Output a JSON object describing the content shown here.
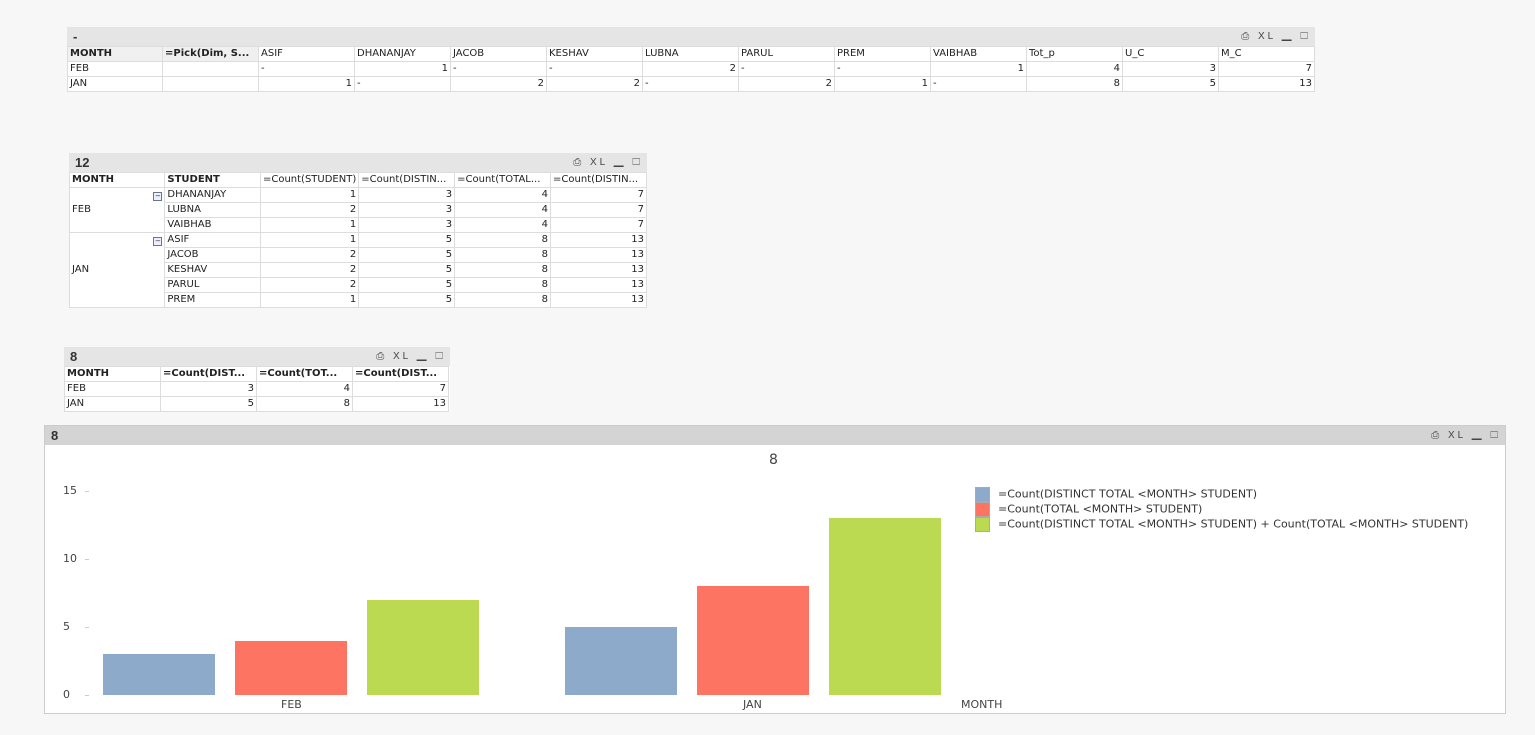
{
  "table1": {
    "title": "-",
    "headers": [
      "MONTH",
      "=Pick(Dim, S...",
      "ASIF",
      "DHANANJAY",
      "JACOB",
      "KESHAV",
      "LUBNA",
      "PARUL",
      "PREM",
      "VAIBHAB",
      "Tot_p",
      "U_C",
      "M_C"
    ],
    "rows": [
      [
        "FEB",
        "",
        "-",
        "1",
        "-",
        "-",
        "2",
        "-",
        "-",
        "1",
        "4",
        "3",
        "7"
      ],
      [
        "JAN",
        "",
        "1",
        "-",
        "2",
        "2",
        "-",
        "2",
        "1",
        "-",
        "8",
        "5",
        "13"
      ]
    ]
  },
  "table2": {
    "title": "12",
    "headers": [
      "MONTH",
      "STUDENT",
      "=Count(STUDENT)",
      "=Count(DISTIN...",
      "=Count(TOTAL...",
      "=Count(DISTIN..."
    ],
    "groups": [
      {
        "month": "FEB",
        "rows": [
          [
            "DHANANJAY",
            "1",
            "3",
            "4",
            "7"
          ],
          [
            "LUBNA",
            "2",
            "3",
            "4",
            "7"
          ],
          [
            "VAIBHAB",
            "1",
            "3",
            "4",
            "7"
          ]
        ]
      },
      {
        "month": "JAN",
        "rows": [
          [
            "ASIF",
            "1",
            "5",
            "8",
            "13"
          ],
          [
            "JACOB",
            "2",
            "5",
            "8",
            "13"
          ],
          [
            "KESHAV",
            "2",
            "5",
            "8",
            "13"
          ],
          [
            "PARUL",
            "2",
            "5",
            "8",
            "13"
          ],
          [
            "PREM",
            "1",
            "5",
            "8",
            "13"
          ]
        ]
      }
    ]
  },
  "table3": {
    "title": "8",
    "headers": [
      "MONTH",
      "=Count(DIST...",
      "=Count(TOT...",
      "=Count(DIST..."
    ],
    "rows": [
      [
        "FEB",
        "3",
        "4",
        "7"
      ],
      [
        "JAN",
        "5",
        "8",
        "13"
      ]
    ]
  },
  "toolbar": {
    "print": "⎙",
    "xl": "XL",
    "minimize": "▁",
    "maximize": "☐"
  },
  "chart_data": {
    "type": "bar",
    "caption": "8",
    "title": "8",
    "xlabel": "MONTH",
    "categories": [
      "FEB",
      "JAN"
    ],
    "ylim": [
      0,
      15
    ],
    "yticks": [
      0,
      5,
      10,
      15
    ],
    "series": [
      {
        "name": "=Count(DISTINCT TOTAL <MONTH> STUDENT)",
        "color": "#8eaacb",
        "values": [
          3,
          5
        ]
      },
      {
        "name": "=Count(TOTAL <MONTH> STUDENT)",
        "color": "#fd7462",
        "values": [
          4,
          8
        ]
      },
      {
        "name": "=Count(DISTINCT TOTAL <MONTH> STUDENT) + Count(TOTAL <MONTH> STUDENT)",
        "color": "#bcd952",
        "values": [
          7,
          13
        ]
      }
    ]
  }
}
